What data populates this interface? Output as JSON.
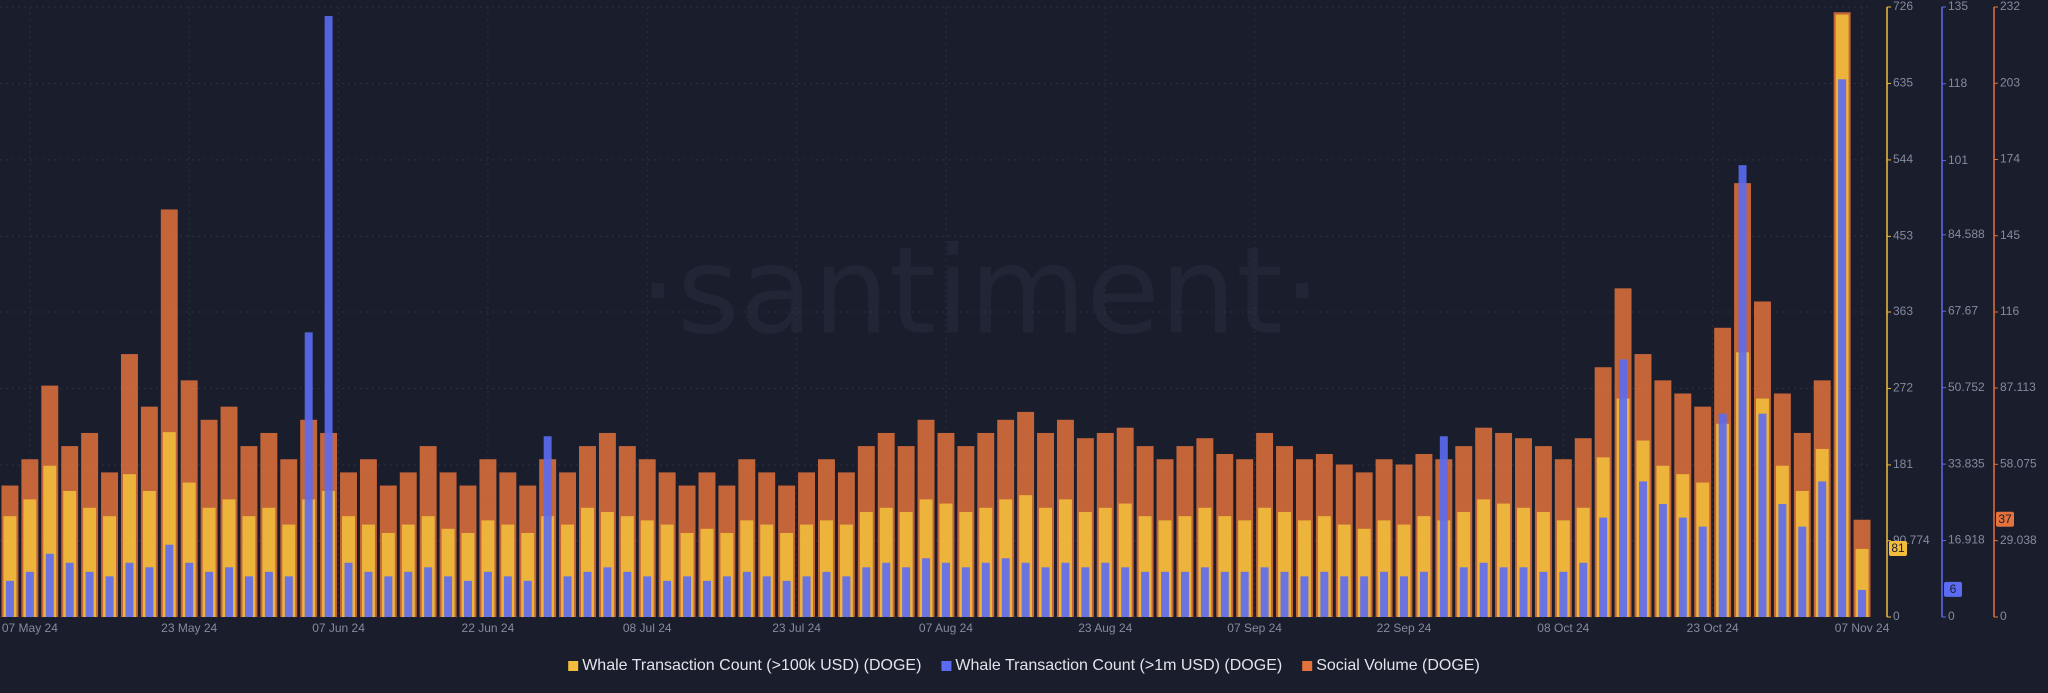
{
  "chart_data": {
    "type": "bar",
    "watermark": "·santiment·",
    "grid": true,
    "x": [
      "2024-05-05",
      "2024-05-07",
      "2024-05-09",
      "2024-05-11",
      "2024-05-13",
      "2024-05-15",
      "2024-05-17",
      "2024-05-19",
      "2024-05-21",
      "2024-05-23",
      "2024-05-25",
      "2024-05-27",
      "2024-05-29",
      "2024-05-31",
      "2024-06-02",
      "2024-06-04",
      "2024-06-06",
      "2024-06-08",
      "2024-06-10",
      "2024-06-12",
      "2024-06-14",
      "2024-06-16",
      "2024-06-18",
      "2024-06-20",
      "2024-06-22",
      "2024-06-24",
      "2024-06-26",
      "2024-06-28",
      "2024-06-30",
      "2024-07-02",
      "2024-07-04",
      "2024-07-06",
      "2024-07-08",
      "2024-07-10",
      "2024-07-12",
      "2024-07-14",
      "2024-07-16",
      "2024-07-18",
      "2024-07-20",
      "2024-07-22",
      "2024-07-24",
      "2024-07-26",
      "2024-07-28",
      "2024-07-30",
      "2024-08-01",
      "2024-08-03",
      "2024-08-05",
      "2024-08-07",
      "2024-08-09",
      "2024-08-11",
      "2024-08-13",
      "2024-08-15",
      "2024-08-17",
      "2024-08-19",
      "2024-08-21",
      "2024-08-23",
      "2024-08-25",
      "2024-08-27",
      "2024-08-29",
      "2024-08-31",
      "2024-09-02",
      "2024-09-04",
      "2024-09-06",
      "2024-09-08",
      "2024-09-10",
      "2024-09-12",
      "2024-09-14",
      "2024-09-16",
      "2024-09-18",
      "2024-09-20",
      "2024-09-22",
      "2024-09-24",
      "2024-09-26",
      "2024-09-28",
      "2024-09-30",
      "2024-10-02",
      "2024-10-04",
      "2024-10-06",
      "2024-10-08",
      "2024-10-10",
      "2024-10-12",
      "2024-10-14",
      "2024-10-16",
      "2024-10-18",
      "2024-10-20",
      "2024-10-22",
      "2024-10-24",
      "2024-10-26",
      "2024-10-28",
      "2024-10-30",
      "2024-11-01",
      "2024-11-03",
      "2024-11-05",
      "2024-11-07"
    ],
    "xlim": [
      "2024-05-04",
      "2024-11-08"
    ],
    "xticks": [
      {
        "value": "2024-05-07",
        "label": "07 May 24"
      },
      {
        "value": "2024-05-23",
        "label": "23 May 24"
      },
      {
        "value": "2024-06-07",
        "label": "07 Jun 24"
      },
      {
        "value": "2024-06-22",
        "label": "22 Jun 24"
      },
      {
        "value": "2024-07-08",
        "label": "08 Jul 24"
      },
      {
        "value": "2024-07-23",
        "label": "23 Jul 24"
      },
      {
        "value": "2024-08-07",
        "label": "07 Aug 24"
      },
      {
        "value": "2024-08-23",
        "label": "23 Aug 24"
      },
      {
        "value": "2024-09-07",
        "label": "07 Sep 24"
      },
      {
        "value": "2024-09-22",
        "label": "22 Sep 24"
      },
      {
        "value": "2024-10-08",
        "label": "08 Oct 24"
      },
      {
        "value": "2024-10-23",
        "label": "23 Oct 24"
      },
      {
        "value": "2024-11-07",
        "label": "07 Nov 24"
      }
    ],
    "series": [
      {
        "name": "Whale Transaction Count (>100k USD) (DOGE)",
        "color": "#f2bd3c",
        "ylim": [
          0,
          726
        ],
        "yticks": [
          0,
          90.774,
          181,
          272,
          363,
          453,
          544,
          635,
          726
        ],
        "current_value": 81,
        "values": [
          120,
          140,
          180,
          150,
          130,
          120,
          170,
          150,
          220,
          160,
          130,
          140,
          120,
          130,
          110,
          140,
          150,
          120,
          110,
          100,
          110,
          120,
          105,
          100,
          115,
          110,
          100,
          120,
          110,
          130,
          125,
          120,
          115,
          110,
          100,
          105,
          100,
          115,
          110,
          100,
          110,
          115,
          110,
          125,
          130,
          125,
          140,
          135,
          125,
          130,
          140,
          145,
          130,
          140,
          125,
          130,
          135,
          120,
          115,
          120,
          130,
          120,
          115,
          130,
          125,
          115,
          120,
          110,
          105,
          115,
          110,
          120,
          115,
          125,
          140,
          135,
          130,
          125,
          115,
          130,
          190,
          260,
          210,
          180,
          170,
          160,
          230,
          315,
          260,
          180,
          150,
          200,
          717,
          81
        ]
      },
      {
        "name": "Whale Transaction Count (>1m USD) (DOGE)",
        "color": "#5b6cf2",
        "axis": "y2",
        "ylim": [
          0,
          135
        ],
        "yticks": [
          0,
          16.918,
          33.835,
          50.752,
          67.67,
          84.588,
          101,
          118,
          135
        ],
        "current_value": 6,
        "values": [
          8,
          10,
          14,
          12,
          10,
          9,
          12,
          11,
          16,
          12,
          10,
          11,
          9,
          10,
          9,
          63,
          133,
          12,
          10,
          9,
          10,
          11,
          9,
          8,
          10,
          9,
          8,
          40,
          9,
          10,
          11,
          10,
          9,
          8,
          9,
          8,
          9,
          10,
          9,
          8,
          9,
          10,
          9,
          11,
          12,
          11,
          13,
          12,
          11,
          12,
          13,
          12,
          11,
          12,
          11,
          12,
          11,
          10,
          10,
          10,
          11,
          10,
          10,
          11,
          10,
          9,
          10,
          9,
          9,
          10,
          9,
          10,
          40,
          11,
          12,
          11,
          11,
          10,
          10,
          12,
          22,
          57,
          30,
          25,
          22,
          20,
          45,
          100,
          45,
          25,
          20,
          30,
          119,
          6
        ]
      },
      {
        "name": "Social Volume (DOGE)",
        "color": "#e3723c",
        "axis": "y3",
        "ylim": [
          0,
          232
        ],
        "yticks": [
          0,
          29.038,
          58.075,
          87.113,
          116,
          145,
          174,
          203,
          232
        ],
        "current_value": 37,
        "values": [
          50,
          60,
          88,
          65,
          70,
          55,
          100,
          80,
          155,
          90,
          75,
          80,
          65,
          70,
          60,
          75,
          70,
          55,
          60,
          50,
          55,
          65,
          55,
          50,
          60,
          55,
          50,
          60,
          55,
          65,
          70,
          65,
          60,
          55,
          50,
          55,
          50,
          60,
          55,
          50,
          55,
          60,
          55,
          65,
          70,
          65,
          75,
          70,
          65,
          70,
          75,
          78,
          70,
          75,
          68,
          70,
          72,
          65,
          60,
          65,
          68,
          62,
          60,
          70,
          65,
          60,
          62,
          58,
          55,
          60,
          58,
          62,
          60,
          65,
          72,
          70,
          68,
          65,
          60,
          68,
          95,
          125,
          100,
          90,
          85,
          80,
          110,
          165,
          120,
          85,
          70,
          90,
          230,
          37
        ]
      }
    ]
  }
}
